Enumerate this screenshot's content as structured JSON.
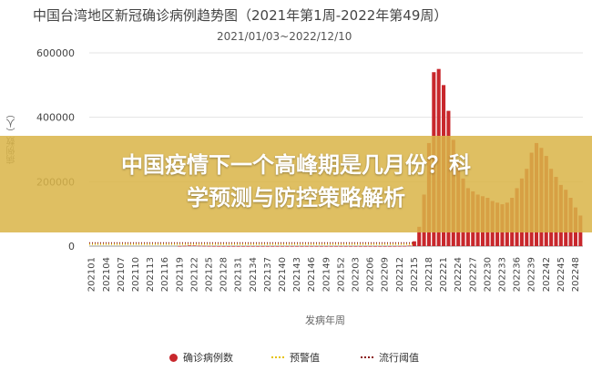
{
  "header": {
    "title": "中国台湾地区新冠确诊病例趋势图（2021年第1周-2022年第49周）",
    "subtitle": "2021/01/03~2022/12/10"
  },
  "overlay": {
    "line1": "中国疫情下一个高峰期是几月份？科",
    "line2": "学预测与防控策略解析"
  },
  "chart_data": {
    "type": "bar",
    "title": "中国台湾地区新冠确诊病例趋势图（2021年第1周-2022年第49周）",
    "subtitle": "2021/01/03~2022/12/10",
    "xlabel": "发病年周",
    "ylabel": "病例数（人）",
    "ylim": [
      0,
      600000
    ],
    "yticks": [
      0,
      200000,
      400000,
      600000
    ],
    "xticks": [
      "202101",
      "202104",
      "202107",
      "202110",
      "202113",
      "202116",
      "202119",
      "202122",
      "202125",
      "202128",
      "202131",
      "202134",
      "202137",
      "202140",
      "202143",
      "202146",
      "202149",
      "202152",
      "202203",
      "202206",
      "202209",
      "202212",
      "202215",
      "202218",
      "202221",
      "202224",
      "202227",
      "202230",
      "202233",
      "202236",
      "202239",
      "202242",
      "202245",
      "202248"
    ],
    "grid": "horizontal",
    "legend_position": "bottom",
    "colors": {
      "bars": "#c8272c",
      "warning": "#e6c200",
      "epidemic": "#8b1a1a"
    },
    "series": [
      {
        "name": "确诊病例数",
        "weeks_start": "202101",
        "values": [
          0,
          0,
          0,
          0,
          0,
          0,
          0,
          0,
          0,
          0,
          0,
          0,
          0,
          0,
          0,
          0,
          0,
          0,
          300,
          900,
          2000,
          1800,
          1200,
          700,
          400,
          200,
          100,
          50,
          30,
          20,
          10,
          10,
          10,
          10,
          10,
          10,
          10,
          10,
          10,
          10,
          10,
          10,
          10,
          10,
          10,
          10,
          10,
          10,
          10,
          10,
          10,
          10,
          10,
          10,
          10,
          10,
          10,
          10,
          10,
          10,
          10,
          10,
          100,
          200,
          300,
          1500,
          15000,
          60000,
          160000,
          320000,
          540000,
          550000,
          500000,
          420000,
          330000,
          260000,
          210000,
          180000,
          170000,
          160000,
          155000,
          150000,
          140000,
          135000,
          130000,
          135000,
          150000,
          180000,
          210000,
          240000,
          290000,
          320000,
          305000,
          280000,
          240000,
          215000,
          190000,
          175000,
          150000,
          120000,
          95000
        ]
      },
      {
        "name": "预警值",
        "values": []
      },
      {
        "name": "流行阈值",
        "values": []
      }
    ]
  },
  "legend": [
    {
      "label": "确诊病例数",
      "kind": "dot",
      "color": "#c8272c"
    },
    {
      "label": "预警值",
      "kind": "dots",
      "color": "#e6c200"
    },
    {
      "label": "流行阈值",
      "kind": "dots",
      "color": "#8b1a1a"
    }
  ]
}
